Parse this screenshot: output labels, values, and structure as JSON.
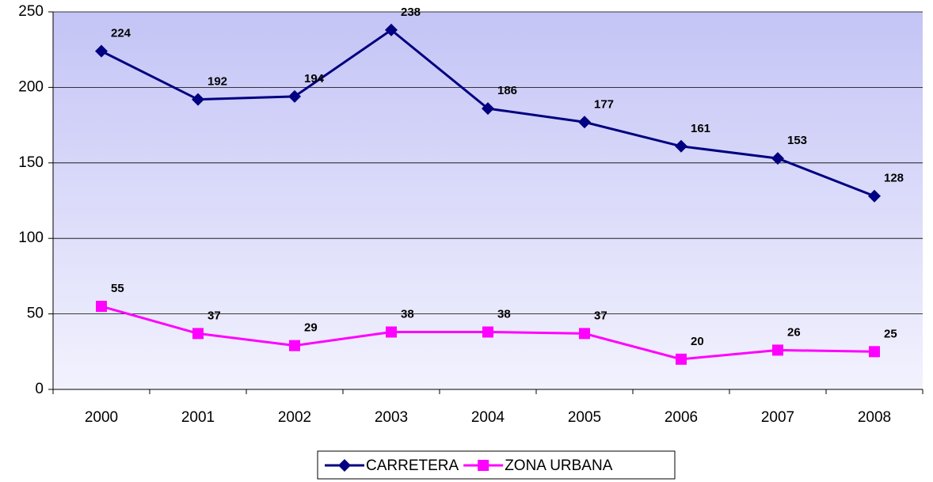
{
  "chart_data": {
    "type": "line",
    "categories": [
      "2000",
      "2001",
      "2002",
      "2003",
      "2004",
      "2005",
      "2006",
      "2007",
      "2008"
    ],
    "series": [
      {
        "name": "CARRETERA",
        "color": "#000080",
        "marker": "diamond",
        "values": [
          224,
          192,
          194,
          238,
          186,
          177,
          161,
          153,
          128
        ]
      },
      {
        "name": "ZONA URBANA",
        "color": "#ff00ff",
        "marker": "square",
        "values": [
          55,
          37,
          29,
          38,
          38,
          37,
          20,
          26,
          25
        ]
      }
    ],
    "ylim": [
      0,
      250
    ],
    "yticks": [
      0,
      50,
      100,
      150,
      200,
      250
    ],
    "grid": true,
    "legend": "bottom"
  }
}
